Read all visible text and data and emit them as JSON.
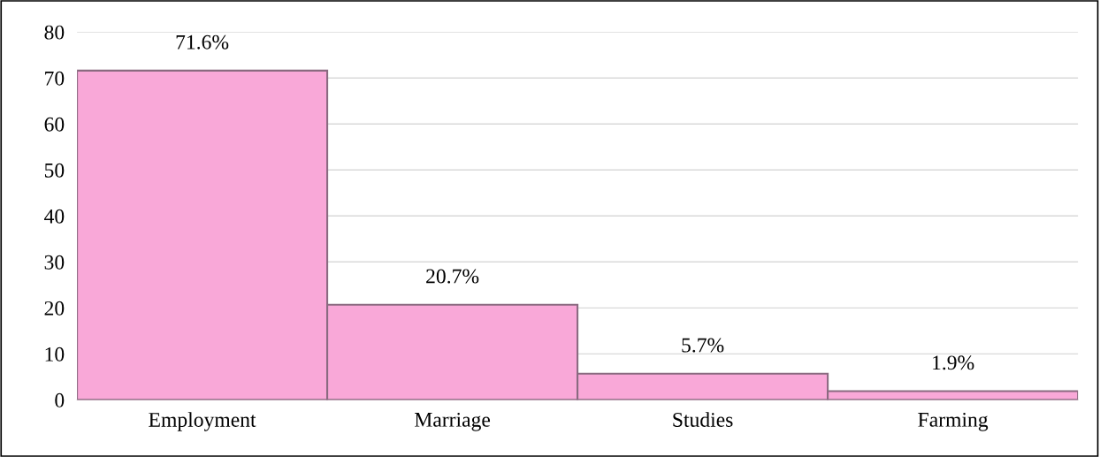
{
  "chart_data": {
    "type": "bar",
    "categories": [
      "Employment",
      "Marriage",
      "Studies",
      "Farming"
    ],
    "values": [
      71.6,
      20.7,
      5.7,
      1.9
    ],
    "value_labels": [
      "71.6%",
      "20.7%",
      "5.7%",
      "1.9%"
    ],
    "color": "#f9a8d8",
    "ylim": [
      0,
      80
    ],
    "yticks": [
      0,
      10,
      20,
      30,
      40,
      50,
      60,
      70,
      80
    ],
    "grid": "y",
    "legend": false
  }
}
